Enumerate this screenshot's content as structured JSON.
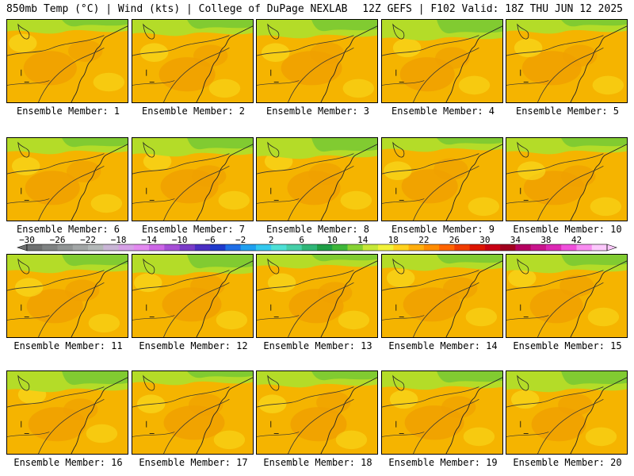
{
  "header": {
    "left": "850mb Temp (°C) | Wind (kts) | College of DuPage NEXLAB",
    "right": "12Z GEFS | F102 Valid: 18Z THU JUN 12 2025"
  },
  "panel_label_prefix": "Ensemble Member:",
  "members": [
    "1",
    "2",
    "3",
    "4",
    "5",
    "6",
    "7",
    "8",
    "9",
    "10",
    "11",
    "12",
    "13",
    "14",
    "15",
    "16",
    "17",
    "18",
    "19",
    "20"
  ],
  "colorbar": {
    "tick_labels": [
      "-30",
      "-26",
      "-22",
      "-18",
      "-14",
      "-10",
      "-6",
      "-2",
      "2",
      "6",
      "10",
      "14",
      "18",
      "22",
      "26",
      "30",
      "34",
      "38",
      "42"
    ],
    "colors": [
      "#6e7070",
      "#7f8282",
      "#909494",
      "#a2a6a6",
      "#b3b8b8",
      "#c9b5d6",
      "#d6a0e6",
      "#e38af0",
      "#cc66e6",
      "#a64fd6",
      "#7a3cc7",
      "#4a2ec2",
      "#1f3acc",
      "#1f6ee6",
      "#1fa0f0",
      "#33c8ee",
      "#4ee0d6",
      "#46cfa8",
      "#2fb678",
      "#1e9e46",
      "#3eb63a",
      "#86d234",
      "#c6e838",
      "#f2f23a",
      "#ffd21e",
      "#ffae0e",
      "#ff8c00",
      "#ff6400",
      "#f03c00",
      "#dc1400",
      "#c80014",
      "#a0001e",
      "#b40060",
      "#c8148c",
      "#dc28b4",
      "#f050dc",
      "#f88cf0",
      "#fcc8fc"
    ]
  },
  "colors": {
    "warm_base": "#f5b400",
    "warmer": "#f0a000",
    "yellow": "#f7dc1e",
    "green_light": "#b4dc28",
    "green": "#78c832"
  }
}
